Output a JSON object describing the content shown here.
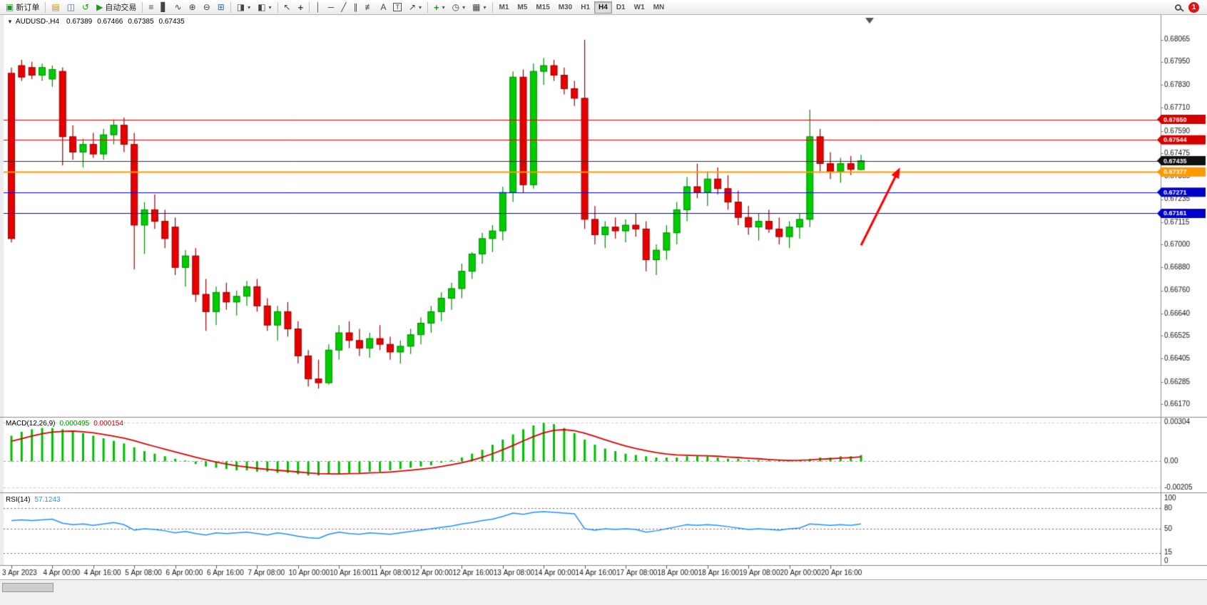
{
  "toolbar": {
    "new_order": "新订单",
    "autotrading": "自动交易",
    "timeframes": [
      "M1",
      "M5",
      "M15",
      "M30",
      "H1",
      "H4",
      "D1",
      "W1",
      "MN"
    ],
    "active_timeframe": "H4",
    "notification_count": "1",
    "icons": {
      "new_order": "▣",
      "chart_window": "▤",
      "market_watch": "◫",
      "refresh": "↺",
      "play": "▶",
      "bar_chart": "≡",
      "candlestick": "▋",
      "line_chart": "∿",
      "zoom_in": "⊕",
      "zoom_out": "⊖",
      "tile_windows": "⊞",
      "new_chart": "◨",
      "profiles": "◧",
      "cursor": "↖",
      "crosshair": "+",
      "vline": "│",
      "hline": "─",
      "trendline": "╱",
      "channel": "∥",
      "fibonacci": "≢",
      "text": "A",
      "label": "T",
      "arrows": "↗",
      "indicators": "+",
      "periods": "◷",
      "templates": "▦",
      "dropdown": "▾"
    }
  },
  "chart_data": [
    {
      "type": "candlestick",
      "symbol": "AUDUSD-,H4",
      "timeframe": "H4",
      "caret": "▼",
      "open": "0.67389",
      "high": "0.67466",
      "low": "0.67385",
      "close": "0.67435",
      "y_max_price": 0.6816,
      "y_min_price": 0.6611,
      "y_axis_labels": [
        "0.68065",
        "0.67950",
        "0.67830",
        "0.67710",
        "0.67590",
        "0.67475",
        "0.67355",
        "0.67235",
        "0.67115",
        "0.67000",
        "0.66880",
        "0.66760",
        "0.66640",
        "0.66525",
        "0.66405",
        "0.66285",
        "0.66170"
      ],
      "time_labels": [
        "3 Apr 2023",
        "4 Apr 00:00",
        "4 Apr 16:00",
        "5 Apr 08:00",
        "6 Apr 00:00",
        "6 Apr 16:00",
        "7 Apr 08:00",
        "10 Apr 00:00",
        "10 Apr 16:00",
        "11 Apr 08:00",
        "12 Apr 00:00",
        "12 Apr 16:00",
        "13 Apr 08:00",
        "14 Apr 00:00",
        "14 Apr 16:00",
        "17 Apr 08:00",
        "18 Apr 00:00",
        "18 Apr 16:00",
        "19 Apr 08:00",
        "20 Apr 00:00",
        "20 Apr 16:00"
      ],
      "colors": {
        "bull": "#00CC00",
        "bull_border": "#008A00",
        "bear": "#E60000",
        "bear_border": "#990000"
      },
      "levels": [
        {
          "price": 0.6765,
          "label": "0.67650",
          "line_color": "#E00000",
          "badge_bg": "#D40000",
          "width": 1
        },
        {
          "price": 0.67544,
          "label": "0.67544",
          "line_color": "#E00000",
          "badge_bg": "#D40000",
          "width": 1
        },
        {
          "price": 0.67435,
          "label": "0.67435",
          "line_color": "#303030",
          "badge_bg": "#101010",
          "width": 1,
          "is_current": true
        },
        {
          "price": 0.67377,
          "label": "0.67377",
          "line_color": "#FF9900",
          "badge_bg": "#FF9900",
          "width": 2
        },
        {
          "price": 0.67271,
          "label": "0.67271",
          "line_color": "#0000E0",
          "badge_bg": "#0000C8",
          "width": 1
        },
        {
          "price": 0.67161,
          "label": "0.67161",
          "line_color": "#0000E0",
          "badge_bg": "#0000C8",
          "width": 1
        }
      ],
      "arrow": {
        "from_index": 83,
        "from_price": 0.66995,
        "to_index": 86.8,
        "to_price": 0.674,
        "color": "#FF0000"
      },
      "candles": [
        [
          0.6789,
          0.6792,
          0.6701,
          0.6703
        ],
        [
          0.6793,
          0.6796,
          0.6785,
          0.6787
        ],
        [
          0.6792,
          0.6795,
          0.6786,
          0.6788
        ],
        [
          0.6788,
          0.6794,
          0.6785,
          0.6792
        ],
        [
          0.6786,
          0.6793,
          0.6782,
          0.6791
        ],
        [
          0.679,
          0.6792,
          0.6741,
          0.6756
        ],
        [
          0.6756,
          0.6762,
          0.6744,
          0.6748
        ],
        [
          0.6748,
          0.6755,
          0.674,
          0.6752
        ],
        [
          0.6752,
          0.6758,
          0.6745,
          0.6747
        ],
        [
          0.6747,
          0.676,
          0.6744,
          0.6757
        ],
        [
          0.6757,
          0.6765,
          0.6752,
          0.6762
        ],
        [
          0.6762,
          0.6766,
          0.6748,
          0.6752
        ],
        [
          0.6752,
          0.6758,
          0.6687,
          0.671
        ],
        [
          0.671,
          0.6722,
          0.6695,
          0.6718
        ],
        [
          0.6718,
          0.6726,
          0.6708,
          0.6712
        ],
        [
          0.6712,
          0.6718,
          0.6698,
          0.6703
        ],
        [
          0.6709,
          0.6714,
          0.6684,
          0.6688
        ],
        [
          0.6688,
          0.6697,
          0.6678,
          0.6694
        ],
        [
          0.6694,
          0.6698,
          0.667,
          0.6674
        ],
        [
          0.6674,
          0.6682,
          0.6655,
          0.6665
        ],
        [
          0.6665,
          0.6678,
          0.6658,
          0.6675
        ],
        [
          0.6675,
          0.668,
          0.6666,
          0.667
        ],
        [
          0.667,
          0.6676,
          0.6663,
          0.6673
        ],
        [
          0.6673,
          0.6681,
          0.6668,
          0.6678
        ],
        [
          0.6678,
          0.6682,
          0.6665,
          0.6668
        ],
        [
          0.6668,
          0.6672,
          0.6655,
          0.6658
        ],
        [
          0.6658,
          0.6668,
          0.665,
          0.6665
        ],
        [
          0.6665,
          0.667,
          0.6652,
          0.6656
        ],
        [
          0.6656,
          0.666,
          0.6638,
          0.6642
        ],
        [
          0.6642,
          0.6645,
          0.6626,
          0.663
        ],
        [
          0.663,
          0.664,
          0.6625,
          0.6628
        ],
        [
          0.6628,
          0.6648,
          0.6627,
          0.6645
        ],
        [
          0.6645,
          0.6658,
          0.664,
          0.6654
        ],
        [
          0.6654,
          0.666,
          0.6646,
          0.665
        ],
        [
          0.665,
          0.6656,
          0.6642,
          0.6646
        ],
        [
          0.6646,
          0.6654,
          0.6641,
          0.6651
        ],
        [
          0.6651,
          0.6658,
          0.6645,
          0.6648
        ],
        [
          0.6648,
          0.6652,
          0.664,
          0.6644
        ],
        [
          0.6644,
          0.665,
          0.6638,
          0.6647
        ],
        [
          0.6647,
          0.6656,
          0.6643,
          0.6653
        ],
        [
          0.6653,
          0.6662,
          0.6648,
          0.6659
        ],
        [
          0.6659,
          0.6668,
          0.6654,
          0.6665
        ],
        [
          0.6665,
          0.6675,
          0.666,
          0.6672
        ],
        [
          0.6672,
          0.668,
          0.6666,
          0.6677
        ],
        [
          0.6677,
          0.669,
          0.6672,
          0.6686
        ],
        [
          0.6686,
          0.6696,
          0.6682,
          0.6695
        ],
        [
          0.6695,
          0.6706,
          0.669,
          0.6703
        ],
        [
          0.6703,
          0.671,
          0.6696,
          0.6707
        ],
        [
          0.6707,
          0.673,
          0.6702,
          0.6727
        ],
        [
          0.6727,
          0.679,
          0.6722,
          0.6787
        ],
        [
          0.6787,
          0.6791,
          0.6727,
          0.6731
        ],
        [
          0.6731,
          0.6794,
          0.6729,
          0.679
        ],
        [
          0.679,
          0.6797,
          0.6783,
          0.6793
        ],
        [
          0.6793,
          0.6796,
          0.6785,
          0.6788
        ],
        [
          0.6788,
          0.6792,
          0.6778,
          0.6781
        ],
        [
          0.6781,
          0.6785,
          0.6772,
          0.6776
        ],
        [
          0.6776,
          0.68065,
          0.6708,
          0.6713
        ],
        [
          0.6713,
          0.672,
          0.67,
          0.6705
        ],
        [
          0.6705,
          0.6712,
          0.6698,
          0.6709
        ],
        [
          0.6709,
          0.6714,
          0.6703,
          0.6707
        ],
        [
          0.6707,
          0.6713,
          0.6701,
          0.671
        ],
        [
          0.671,
          0.6716,
          0.6704,
          0.6708
        ],
        [
          0.6708,
          0.6712,
          0.6686,
          0.6692
        ],
        [
          0.6692,
          0.67,
          0.6684,
          0.6697
        ],
        [
          0.6697,
          0.671,
          0.6692,
          0.6706
        ],
        [
          0.6706,
          0.6722,
          0.67,
          0.6718
        ],
        [
          0.6718,
          0.6735,
          0.6712,
          0.673
        ],
        [
          0.673,
          0.6742,
          0.6724,
          0.6727
        ],
        [
          0.6727,
          0.6738,
          0.672,
          0.6734
        ],
        [
          0.6734,
          0.674,
          0.6726,
          0.6729
        ],
        [
          0.6729,
          0.6736,
          0.6718,
          0.6722
        ],
        [
          0.6722,
          0.6728,
          0.671,
          0.6714
        ],
        [
          0.6714,
          0.672,
          0.6705,
          0.6709
        ],
        [
          0.6709,
          0.6716,
          0.6702,
          0.6712
        ],
        [
          0.6712,
          0.6718,
          0.6706,
          0.6708
        ],
        [
          0.6708,
          0.6714,
          0.67,
          0.6704
        ],
        [
          0.6704,
          0.6712,
          0.6698,
          0.6709
        ],
        [
          0.6709,
          0.6716,
          0.6703,
          0.6713
        ],
        [
          0.6713,
          0.677,
          0.6709,
          0.6756
        ],
        [
          0.6756,
          0.676,
          0.6738,
          0.6742
        ],
        [
          0.6742,
          0.6748,
          0.6734,
          0.6738
        ],
        [
          0.6738,
          0.6745,
          0.6732,
          0.6742
        ],
        [
          0.6742,
          0.6746,
          0.6736,
          0.6739
        ],
        [
          0.67389,
          0.67466,
          0.67385,
          0.67435
        ]
      ]
    },
    {
      "type": "bar",
      "name_label": "MACD(12,26,9)",
      "value_main": "0.000495",
      "value_signal": "0.000154",
      "y_max": 0.0033,
      "y_min": -0.00225,
      "scale_labels": [
        "0.00304",
        "0.00",
        "-0.00205"
      ],
      "histogram_color": "#00BE00",
      "signal_color": "#DC0000",
      "values": [
        0.002,
        0.0023,
        0.0025,
        0.0026,
        0.0026,
        0.0025,
        0.0024,
        0.0022,
        0.002,
        0.0018,
        0.0016,
        0.0014,
        0.0011,
        0.0008,
        0.0006,
        0.0004,
        0.0002,
        0.0,
        -0.0002,
        -0.0004,
        -0.0005,
        -0.0006,
        -0.0007,
        -0.0007,
        -0.0008,
        -0.0008,
        -0.0009,
        -0.0009,
        -0.001,
        -0.0011,
        -0.0011,
        -0.001,
        -0.001,
        -0.0009,
        -0.0009,
        -0.0008,
        -0.0008,
        -0.0007,
        -0.0006,
        -0.0005,
        -0.0004,
        -0.0003,
        -0.0001,
        0.0001,
        0.0003,
        0.0006,
        0.0009,
        0.0013,
        0.0017,
        0.0021,
        0.0025,
        0.0028,
        0.003,
        0.0029,
        0.0026,
        0.0022,
        0.0017,
        0.0013,
        0.001,
        0.0008,
        0.0006,
        0.0005,
        0.0004,
        0.0003,
        0.0003,
        0.0003,
        0.0004,
        0.0004,
        0.0004,
        0.0003,
        0.0002,
        0.0002,
        0.0001,
        0.0001,
        0.0,
        0.0,
        0.0,
        0.0001,
        0.0002,
        0.0003,
        0.0003,
        0.0004,
        0.0004,
        0.000495
      ]
    },
    {
      "type": "line",
      "name_label": "RSI(14)",
      "value": "57.1243",
      "scale_labels": [
        "100",
        "80",
        "50",
        "15",
        "0"
      ],
      "level_lines": [
        80,
        50,
        15
      ],
      "line_color": "#1E90FF",
      "values": [
        62,
        63,
        62,
        63,
        64,
        58,
        56,
        57,
        55,
        57,
        59,
        56,
        48,
        50,
        49,
        47,
        44,
        46,
        43,
        41,
        44,
        43,
        44,
        45,
        43,
        41,
        44,
        42,
        39,
        37,
        36,
        42,
        45,
        43,
        42,
        44,
        43,
        42,
        44,
        46,
        48,
        50,
        52,
        54,
        57,
        59,
        62,
        64,
        68,
        73,
        71,
        74,
        75,
        74,
        73,
        72,
        50,
        48,
        50,
        49,
        50,
        49,
        45,
        47,
        50,
        53,
        56,
        55,
        56,
        55,
        53,
        51,
        49,
        50,
        49,
        48,
        50,
        51,
        57,
        56,
        55,
        56,
        55,
        57.1243
      ]
    }
  ]
}
